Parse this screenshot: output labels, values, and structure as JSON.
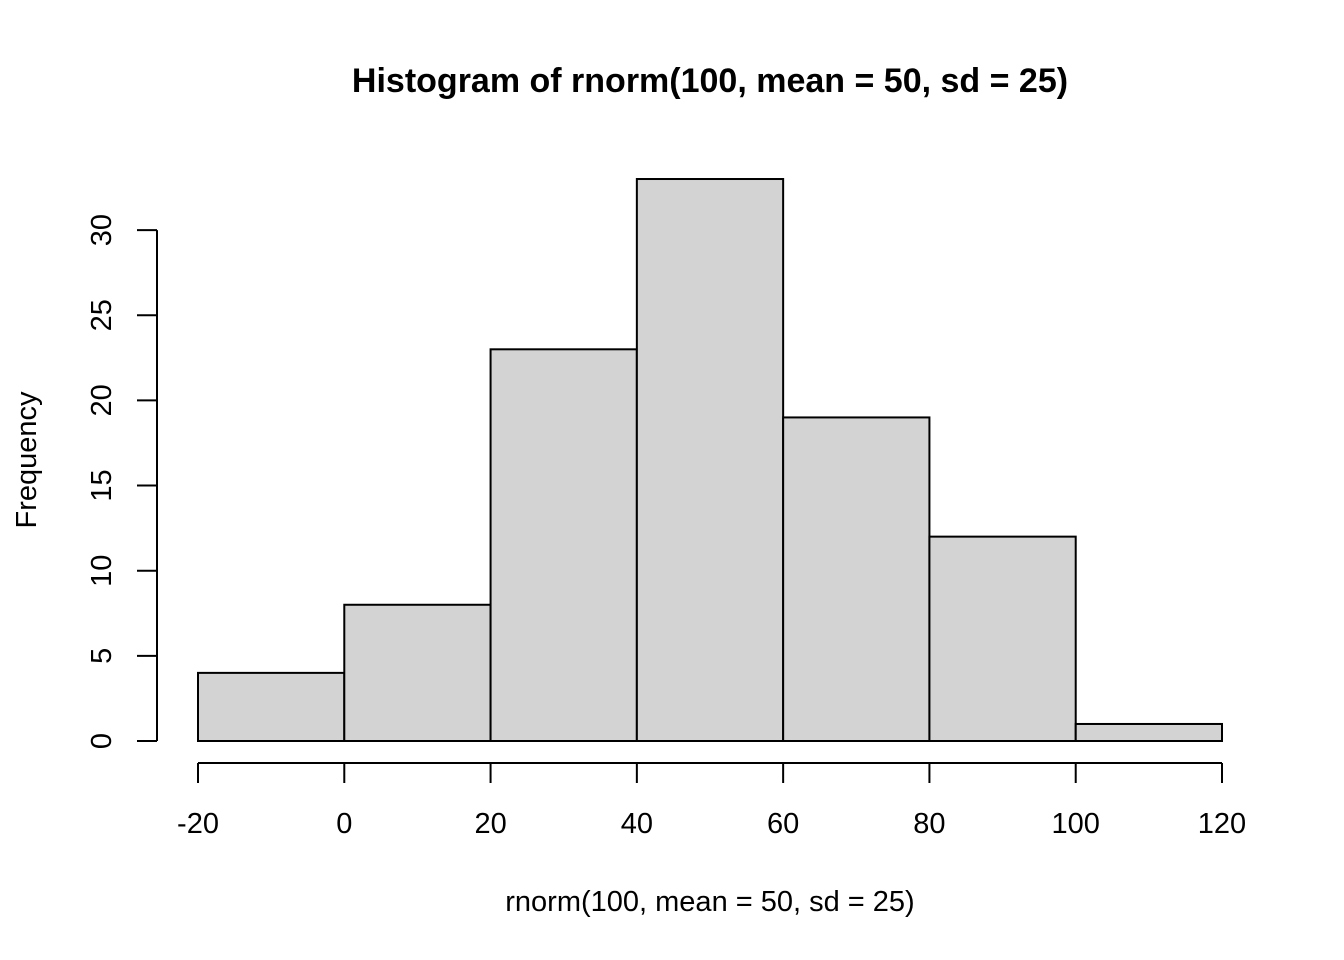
{
  "chart_data": {
    "type": "bar",
    "title": "Histogram of rnorm(100, mean = 50, sd = 25)",
    "xlabel": "rnorm(100, mean = 50, sd = 25)",
    "ylabel": "Frequency",
    "bins": [
      {
        "from": -20,
        "to": 0,
        "count": 4
      },
      {
        "from": 0,
        "to": 20,
        "count": 8
      },
      {
        "from": 20,
        "to": 40,
        "count": 23
      },
      {
        "from": 40,
        "to": 60,
        "count": 33
      },
      {
        "from": 60,
        "to": 80,
        "count": 19
      },
      {
        "from": 80,
        "to": 100,
        "count": 12
      },
      {
        "from": 100,
        "to": 120,
        "count": 1
      }
    ],
    "xticks": [
      -20,
      0,
      20,
      40,
      60,
      80,
      100,
      120
    ],
    "yticks": [
      0,
      5,
      10,
      15,
      20,
      25,
      30
    ],
    "xlim": [
      -20,
      120
    ],
    "ylim": [
      0,
      33
    ],
    "grid": false,
    "bar_color": "#d3d3d3",
    "border_color": "#000000"
  }
}
